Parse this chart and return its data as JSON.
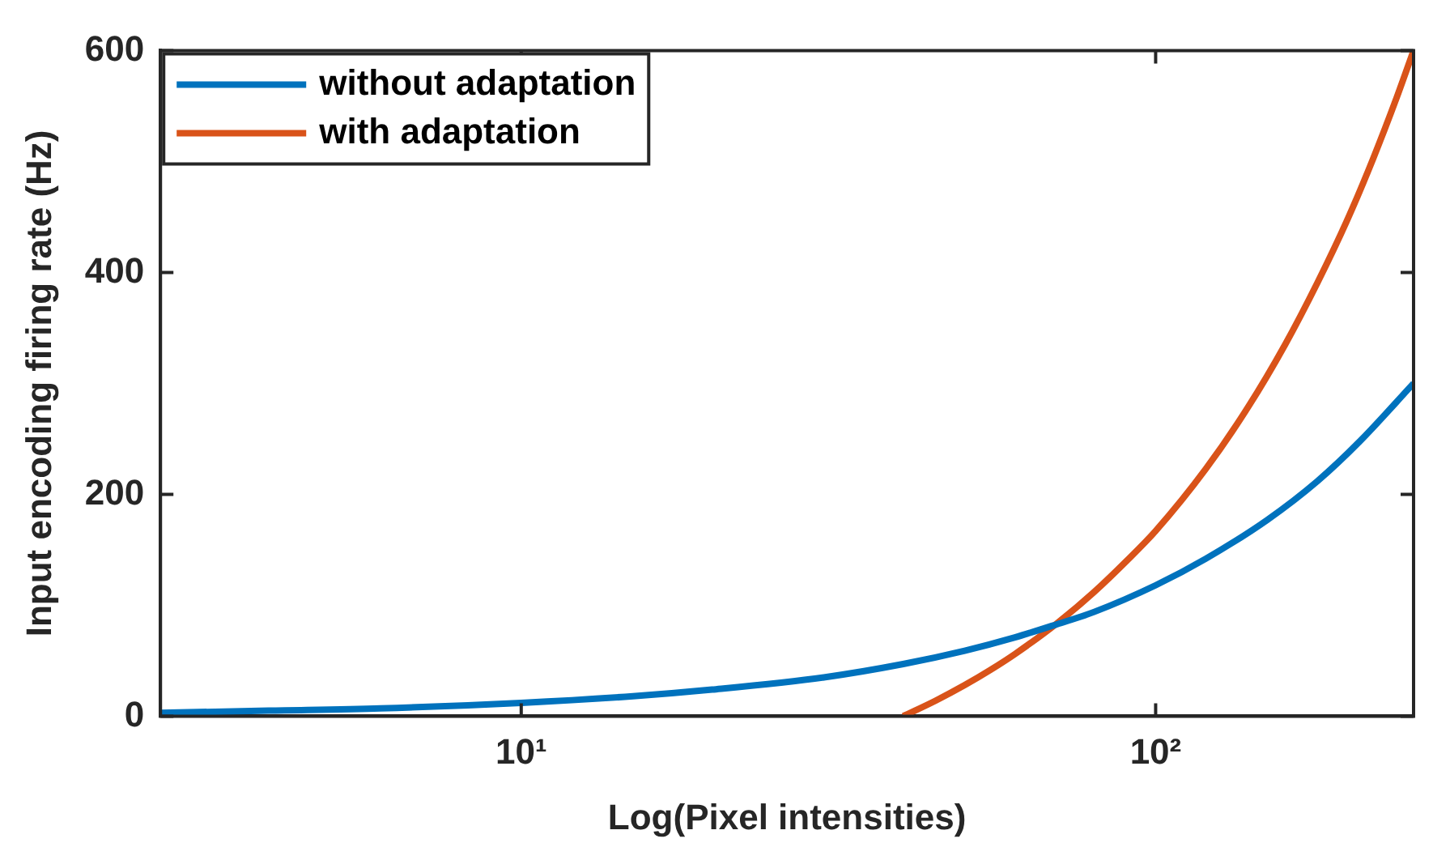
{
  "chart_data": {
    "type": "line",
    "xlabel": "Log(Pixel intensities)",
    "ylabel": "Input encoding firing rate (Hz)",
    "log": "x",
    "x": [
      2.7,
      4,
      6,
      10,
      15,
      20,
      30,
      40,
      50,
      60,
      70,
      80,
      100,
      120,
      150,
      180,
      210,
      255
    ],
    "series": [
      {
        "name": "without adaptation",
        "color": "#0072bd",
        "values": [
          3,
          5,
          7,
          12,
          18,
          24,
          35,
          47,
          59,
          71,
          83,
          94,
          118,
          142,
          177,
          212,
          248,
          300
        ]
      },
      {
        "name": "with adaptation",
        "color": "#d95319",
        "x": [
          40,
          45,
          50,
          55,
          60,
          70,
          80,
          90,
          100,
          120,
          140,
          160,
          180,
          200,
          220,
          240,
          255
        ],
        "values": [
          0,
          14,
          28,
          42,
          56,
          84,
          112,
          140,
          167,
          223,
          279,
          335,
          391,
          446,
          502,
          558,
          600
        ]
      }
    ],
    "xlim": [
      2.7,
      255
    ],
    "xticks": [
      {
        "value": 10,
        "label": "10¹"
      },
      {
        "value": 100,
        "label": "10²"
      }
    ],
    "ylim": [
      0,
      600
    ],
    "yticks": [
      0,
      200,
      400,
      600
    ],
    "grid": false,
    "legend": "top left",
    "marker": "none",
    "line_style": "solid"
  }
}
